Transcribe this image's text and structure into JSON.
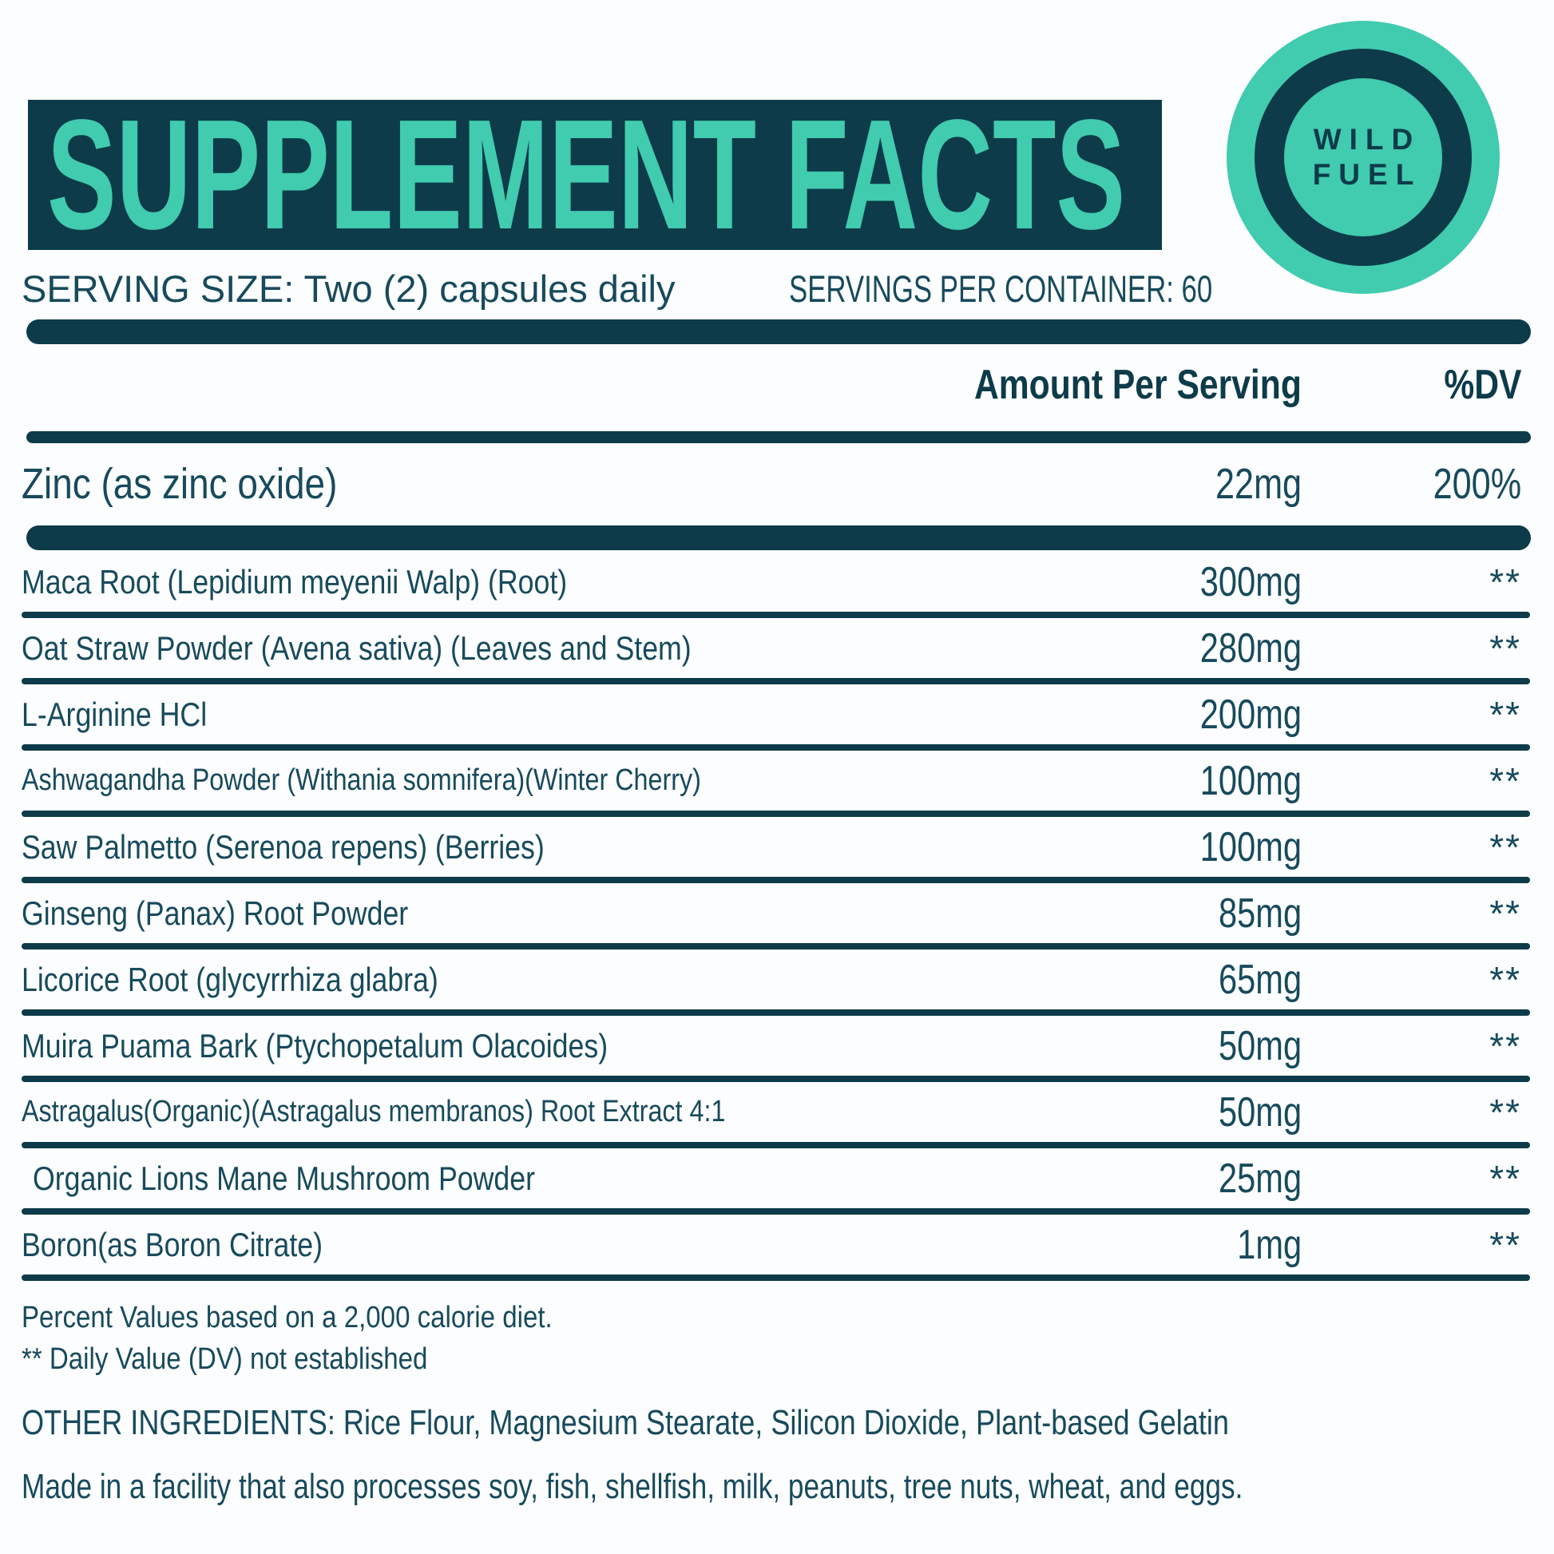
{
  "header": {
    "title": "SUPPLEMENT FACTS"
  },
  "logo": {
    "line1": "WILD",
    "line2": "FUEL"
  },
  "serving": {
    "size": "SERVING SIZE: Two (2) capsules daily",
    "per_container": "SERVINGS PER CONTAINER: 60"
  },
  "columns": {
    "amount": "Amount Per Serving",
    "dv": "%DV"
  },
  "rows": [
    {
      "name": "Zinc (as zinc oxide)",
      "amount": "22mg",
      "dv": "200%"
    },
    {
      "name": "Maca Root (Lepidium meyenii Walp) (Root)",
      "amount": "300mg",
      "dv": "**"
    },
    {
      "name": "Oat Straw Powder (Avena sativa) (Leaves and Stem)",
      "amount": "280mg",
      "dv": "**"
    },
    {
      "name": "L-Arginine HCl",
      "amount": "200mg",
      "dv": "**"
    },
    {
      "name": "Ashwagandha Powder (Withania somnifera)(Winter Cherry)",
      "amount": "100mg",
      "dv": "**"
    },
    {
      "name": "Saw Palmetto (Serenoa repens) (Berries)",
      "amount": "100mg",
      "dv": "**"
    },
    {
      "name": "Ginseng (Panax) Root Powder",
      "amount": "85mg",
      "dv": "**"
    },
    {
      "name": "Licorice Root (glycyrrhiza glabra)",
      "amount": "65mg",
      "dv": "**"
    },
    {
      "name": "Muira Puama Bark (Ptychopetalum Olacoides)",
      "amount": "50mg",
      "dv": "**"
    },
    {
      "name": "Astragalus(Organic)(Astragalus membranos) Root Extract 4:1",
      "amount": "50mg",
      "dv": "**"
    },
    {
      "name": "Organic Lions Mane Mushroom Powder",
      "amount": "25mg",
      "dv": "**"
    },
    {
      "name": "Boron(as Boron Citrate)",
      "amount": "1mg",
      "dv": "**"
    }
  ],
  "notes": {
    "percent": "Percent Values based on a 2,000 calorie diet.",
    "daily_value": "** Daily Value (DV) not established",
    "other_ingredients": "OTHER INGREDIENTS: Rice Flour, Magnesium Stearate, Silicon Dioxide, Plant-based Gelatin",
    "allergen": "Made in a facility that also processes soy, fish, shellfish, milk, peanuts, tree nuts, wheat, and eggs."
  },
  "colors": {
    "teal": "#41CBAF",
    "navy": "#0D3B49",
    "text": "#174A5C",
    "background": "#FCFDFE"
  }
}
